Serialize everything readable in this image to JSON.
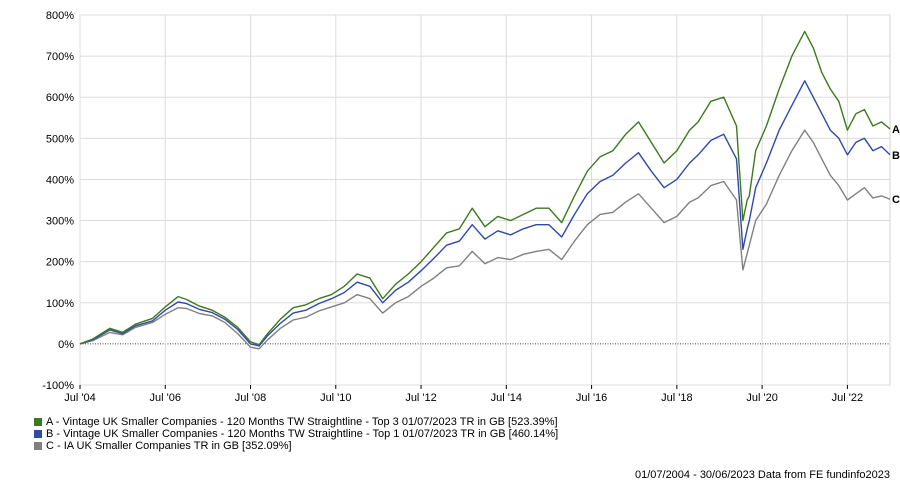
{
  "chart_data": {
    "type": "line",
    "x_range": [
      "Jul '04",
      "Jun '23"
    ],
    "ylim": [
      -100,
      800
    ],
    "y_ticks": [
      "-100%",
      "0%",
      "100%",
      "200%",
      "300%",
      "400%",
      "500%",
      "600%",
      "700%",
      "800%"
    ],
    "x_ticks": [
      "Jul '04",
      "Jul '06",
      "Jul '08",
      "Jul '10",
      "Jul '12",
      "Jul '14",
      "Jul '16",
      "Jul '18",
      "Jul '20",
      "Jul '22"
    ],
    "grid": "vertical and horizontal light-grey lines; dotted zero line",
    "series": [
      {
        "id": "A",
        "name": "A - Vintage UK Smaller Companies - 120 Months TW Straightline - Top 3 01/07/2023 TR in GB [523.39%]",
        "color": "#3d7a1e",
        "x": [
          2004.5,
          2004.8,
          2005.2,
          2005.5,
          2005.8,
          2006.2,
          2006.5,
          2006.8,
          2007.0,
          2007.3,
          2007.6,
          2007.9,
          2008.2,
          2008.5,
          2008.7,
          2008.9,
          2009.2,
          2009.5,
          2009.8,
          2010.1,
          2010.4,
          2010.7,
          2011.0,
          2011.3,
          2011.6,
          2011.9,
          2012.2,
          2012.5,
          2012.8,
          2013.1,
          2013.4,
          2013.7,
          2014.0,
          2014.3,
          2014.6,
          2014.9,
          2015.2,
          2015.5,
          2015.8,
          2016.1,
          2016.4,
          2016.7,
          2017.0,
          2017.3,
          2017.6,
          2017.9,
          2018.2,
          2018.5,
          2018.8,
          2019.0,
          2019.3,
          2019.6,
          2019.9,
          2020.05,
          2020.15,
          2020.2,
          2020.35,
          2020.6,
          2020.9,
          2021.2,
          2021.5,
          2021.7,
          2021.9,
          2022.1,
          2022.3,
          2022.5,
          2022.7,
          2022.9,
          2023.1,
          2023.3,
          2023.5
        ],
        "values": [
          0,
          12,
          38,
          28,
          48,
          62,
          90,
          115,
          108,
          92,
          82,
          65,
          40,
          5,
          -2,
          25,
          60,
          88,
          95,
          110,
          120,
          140,
          170,
          160,
          110,
          145,
          170,
          200,
          235,
          270,
          280,
          330,
          285,
          310,
          300,
          315,
          330,
          330,
          295,
          360,
          420,
          455,
          470,
          510,
          540,
          490,
          440,
          470,
          520,
          540,
          590,
          600,
          530,
          300,
          350,
          360,
          470,
          530,
          620,
          700,
          760,
          720,
          660,
          620,
          590,
          520,
          560,
          570,
          530,
          540,
          523
        ]
      },
      {
        "id": "B",
        "name": "B - Vintage UK Smaller Companies - 120 Months TW Straightline - Top 1 01/07/2023 TR in GB [460.14%]",
        "color": "#2f4aa8",
        "x": [
          2004.5,
          2004.8,
          2005.2,
          2005.5,
          2005.8,
          2006.2,
          2006.5,
          2006.8,
          2007.0,
          2007.3,
          2007.6,
          2007.9,
          2008.2,
          2008.5,
          2008.7,
          2008.9,
          2009.2,
          2009.5,
          2009.8,
          2010.1,
          2010.4,
          2010.7,
          2011.0,
          2011.3,
          2011.6,
          2011.9,
          2012.2,
          2012.5,
          2012.8,
          2013.1,
          2013.4,
          2013.7,
          2014.0,
          2014.3,
          2014.6,
          2014.9,
          2015.2,
          2015.5,
          2015.8,
          2016.1,
          2016.4,
          2016.7,
          2017.0,
          2017.3,
          2017.6,
          2017.9,
          2018.2,
          2018.5,
          2018.8,
          2019.0,
          2019.3,
          2019.6,
          2019.9,
          2020.05,
          2020.15,
          2020.2,
          2020.35,
          2020.6,
          2020.9,
          2021.2,
          2021.5,
          2021.7,
          2021.9,
          2022.1,
          2022.3,
          2022.5,
          2022.7,
          2022.9,
          2023.1,
          2023.3,
          2023.5
        ],
        "values": [
          0,
          10,
          34,
          25,
          44,
          56,
          82,
          102,
          98,
          84,
          76,
          60,
          35,
          0,
          -5,
          20,
          50,
          75,
          82,
          98,
          110,
          125,
          150,
          140,
          100,
          130,
          150,
          178,
          208,
          240,
          250,
          290,
          255,
          275,
          265,
          280,
          290,
          290,
          260,
          315,
          365,
          395,
          410,
          440,
          465,
          420,
          380,
          400,
          440,
          460,
          495,
          510,
          450,
          230,
          280,
          300,
          380,
          440,
          520,
          580,
          640,
          600,
          560,
          520,
          500,
          460,
          490,
          500,
          470,
          480,
          460
        ]
      },
      {
        "id": "C",
        "name": "C - IA UK Smaller Companies TR in GB [352.09%]",
        "color": "#808080",
        "x": [
          2004.5,
          2004.8,
          2005.2,
          2005.5,
          2005.8,
          2006.2,
          2006.5,
          2006.8,
          2007.0,
          2007.3,
          2007.6,
          2007.9,
          2008.2,
          2008.5,
          2008.7,
          2008.9,
          2009.2,
          2009.5,
          2009.8,
          2010.1,
          2010.4,
          2010.7,
          2011.0,
          2011.3,
          2011.6,
          2011.9,
          2012.2,
          2012.5,
          2012.8,
          2013.1,
          2013.4,
          2013.7,
          2014.0,
          2014.3,
          2014.6,
          2014.9,
          2015.2,
          2015.5,
          2015.8,
          2016.1,
          2016.4,
          2016.7,
          2017.0,
          2017.3,
          2017.6,
          2017.9,
          2018.2,
          2018.5,
          2018.8,
          2019.0,
          2019.3,
          2019.6,
          2019.9,
          2020.05,
          2020.15,
          2020.2,
          2020.35,
          2020.6,
          2020.9,
          2021.2,
          2021.5,
          2021.7,
          2021.9,
          2022.1,
          2022.3,
          2022.5,
          2022.7,
          2022.9,
          2023.1,
          2023.3,
          2023.5
        ],
        "values": [
          0,
          8,
          28,
          22,
          40,
          52,
          72,
          88,
          86,
          74,
          68,
          52,
          25,
          -8,
          -12,
          10,
          38,
          58,
          65,
          80,
          90,
          100,
          120,
          110,
          75,
          100,
          115,
          140,
          160,
          185,
          190,
          225,
          195,
          210,
          205,
          218,
          225,
          230,
          205,
          250,
          290,
          315,
          320,
          345,
          365,
          330,
          295,
          310,
          345,
          355,
          385,
          395,
          350,
          180,
          220,
          240,
          300,
          340,
          410,
          470,
          520,
          490,
          450,
          410,
          385,
          350,
          365,
          380,
          355,
          360,
          352
        ]
      }
    ],
    "series_labels": [
      "A",
      "B",
      "C"
    ]
  },
  "legend": [
    {
      "label": "A - Vintage UK Smaller Companies - 120 Months TW Straightline - Top 3 01/07/2023 TR in GB [523.39%]",
      "color": "#3d7a1e"
    },
    {
      "label": "B - Vintage UK Smaller Companies - 120 Months TW Straightline - Top 1 01/07/2023 TR in GB [460.14%]",
      "color": "#2f4aa8"
    },
    {
      "label": "C - IA UK Smaller Companies TR in GB [352.09%]",
      "color": "#808080"
    }
  ],
  "footer": "01/07/2004 - 30/06/2023 Data from FE fundinfo2023"
}
